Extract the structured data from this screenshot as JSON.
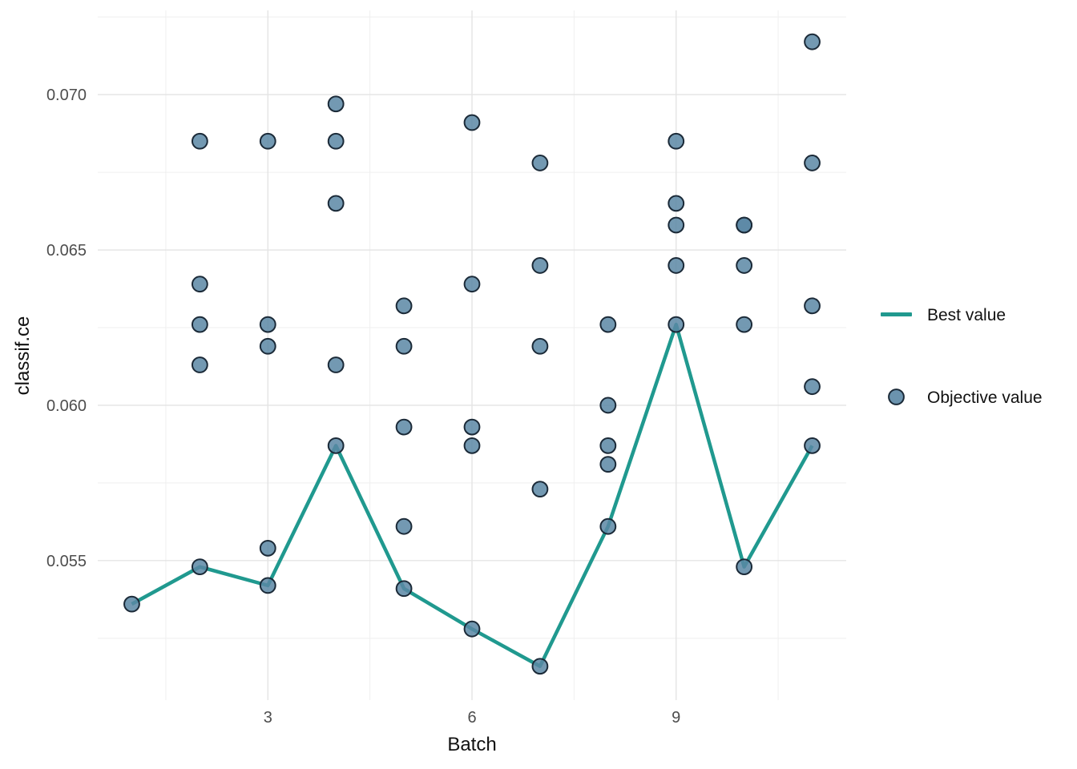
{
  "chart_data": {
    "type": "scatter",
    "title": "",
    "xlabel": "Batch",
    "ylabel": "classif.ce",
    "xlim": [
      0.5,
      11.5
    ],
    "ylim": [
      0.05051,
      0.07271
    ],
    "x_major_ticks": [
      3,
      6,
      9
    ],
    "x_tick_labels": [
      "3",
      "6",
      "9"
    ],
    "x_minor_ticks": [
      1.5,
      4.5,
      7.5,
      10.5
    ],
    "y_major_ticks": [
      0.055,
      0.06,
      0.065,
      0.07
    ],
    "y_tick_labels": [
      "0.055",
      "0.060",
      "0.065",
      "0.070"
    ],
    "y_minor_ticks": [
      0.0525,
      0.0575,
      0.0625,
      0.0675,
      0.0725
    ],
    "grid": true,
    "legend_position": "right",
    "colors": {
      "best_line": "#20998f",
      "point_fill": "#5b87a5",
      "point_stroke": "#1b2a38",
      "grid_major": "#e4e4e4",
      "grid_minor": "#efefef",
      "tick_label": "#4d4d4d",
      "axis_title": "#111111",
      "background": "#ffffff"
    },
    "legend": [
      {
        "label": "Best value",
        "type": "line"
      },
      {
        "label": "Objective value",
        "type": "point"
      }
    ],
    "series": [
      {
        "name": "Best value",
        "type": "line",
        "x": [
          1,
          2,
          3,
          4,
          5,
          6,
          7,
          8,
          9,
          10,
          11
        ],
        "y": [
          0.0536,
          0.0548,
          0.0542,
          0.0587,
          0.0541,
          0.0528,
          0.0516,
          0.0561,
          0.0626,
          0.0548,
          0.0587
        ]
      },
      {
        "name": "Objective value",
        "type": "scatter",
        "points": [
          {
            "x": 1,
            "y": 0.0536
          },
          {
            "x": 2,
            "y": 0.0685
          },
          {
            "x": 2,
            "y": 0.0639
          },
          {
            "x": 2,
            "y": 0.0626
          },
          {
            "x": 2,
            "y": 0.0613
          },
          {
            "x": 2,
            "y": 0.0548
          },
          {
            "x": 3,
            "y": 0.0685
          },
          {
            "x": 3,
            "y": 0.0626
          },
          {
            "x": 3,
            "y": 0.0619
          },
          {
            "x": 3,
            "y": 0.0554
          },
          {
            "x": 3,
            "y": 0.0542
          },
          {
            "x": 4,
            "y": 0.0697
          },
          {
            "x": 4,
            "y": 0.0685
          },
          {
            "x": 4,
            "y": 0.0665
          },
          {
            "x": 4,
            "y": 0.0613
          },
          {
            "x": 4,
            "y": 0.0587
          },
          {
            "x": 5,
            "y": 0.0632
          },
          {
            "x": 5,
            "y": 0.0619
          },
          {
            "x": 5,
            "y": 0.0593
          },
          {
            "x": 5,
            "y": 0.0561
          },
          {
            "x": 5,
            "y": 0.0541
          },
          {
            "x": 6,
            "y": 0.0691
          },
          {
            "x": 6,
            "y": 0.0639
          },
          {
            "x": 6,
            "y": 0.0593
          },
          {
            "x": 6,
            "y": 0.0587
          },
          {
            "x": 6,
            "y": 0.0528
          },
          {
            "x": 7,
            "y": 0.0678
          },
          {
            "x": 7,
            "y": 0.0645
          },
          {
            "x": 7,
            "y": 0.0619
          },
          {
            "x": 7,
            "y": 0.0573
          },
          {
            "x": 7,
            "y": 0.0516
          },
          {
            "x": 8,
            "y": 0.0626
          },
          {
            "x": 8,
            "y": 0.06
          },
          {
            "x": 8,
            "y": 0.0587
          },
          {
            "x": 8,
            "y": 0.0581
          },
          {
            "x": 8,
            "y": 0.0561
          },
          {
            "x": 9,
            "y": 0.0685
          },
          {
            "x": 9,
            "y": 0.0665
          },
          {
            "x": 9,
            "y": 0.0658
          },
          {
            "x": 9,
            "y": 0.0645
          },
          {
            "x": 9,
            "y": 0.0626
          },
          {
            "x": 10,
            "y": 0.0658
          },
          {
            "x": 10,
            "y": 0.0658
          },
          {
            "x": 10,
            "y": 0.0645
          },
          {
            "x": 10,
            "y": 0.0626
          },
          {
            "x": 10,
            "y": 0.0548
          },
          {
            "x": 11,
            "y": 0.0717
          },
          {
            "x": 11,
            "y": 0.0678
          },
          {
            "x": 11,
            "y": 0.0632
          },
          {
            "x": 11,
            "y": 0.0606
          },
          {
            "x": 11,
            "y": 0.0587
          }
        ]
      }
    ]
  }
}
